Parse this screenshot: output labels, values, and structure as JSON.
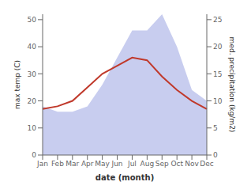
{
  "chart_data": {
    "type": "line",
    "categories": [
      "Jan",
      "Feb",
      "Mar",
      "Apr",
      "May",
      "Jun",
      "Jul",
      "Aug",
      "Sep",
      "Oct",
      "Nov",
      "Dec"
    ],
    "series": [
      {
        "type": "area",
        "axis": "y2",
        "color": "#b0b8e8",
        "values": [
          9,
          8,
          8,
          9,
          13,
          18,
          23,
          23,
          26,
          20,
          12,
          10
        ]
      },
      {
        "type": "line",
        "color": "#c0392b",
        "values": [
          17,
          18,
          20,
          25,
          30,
          33,
          36,
          35,
          29,
          24,
          20,
          17
        ]
      }
    ],
    "xlabel": "date (month)",
    "ylabel": "max temp (C)",
    "y2label": "med. precipitation (kg/m2)",
    "ylim": [
      0,
      52
    ],
    "yticks": [
      0,
      10,
      20,
      30,
      40,
      50
    ],
    "y2lim": [
      0,
      26
    ],
    "y2ticks": [
      0,
      5,
      10,
      15,
      20,
      25
    ],
    "grid": false
  }
}
